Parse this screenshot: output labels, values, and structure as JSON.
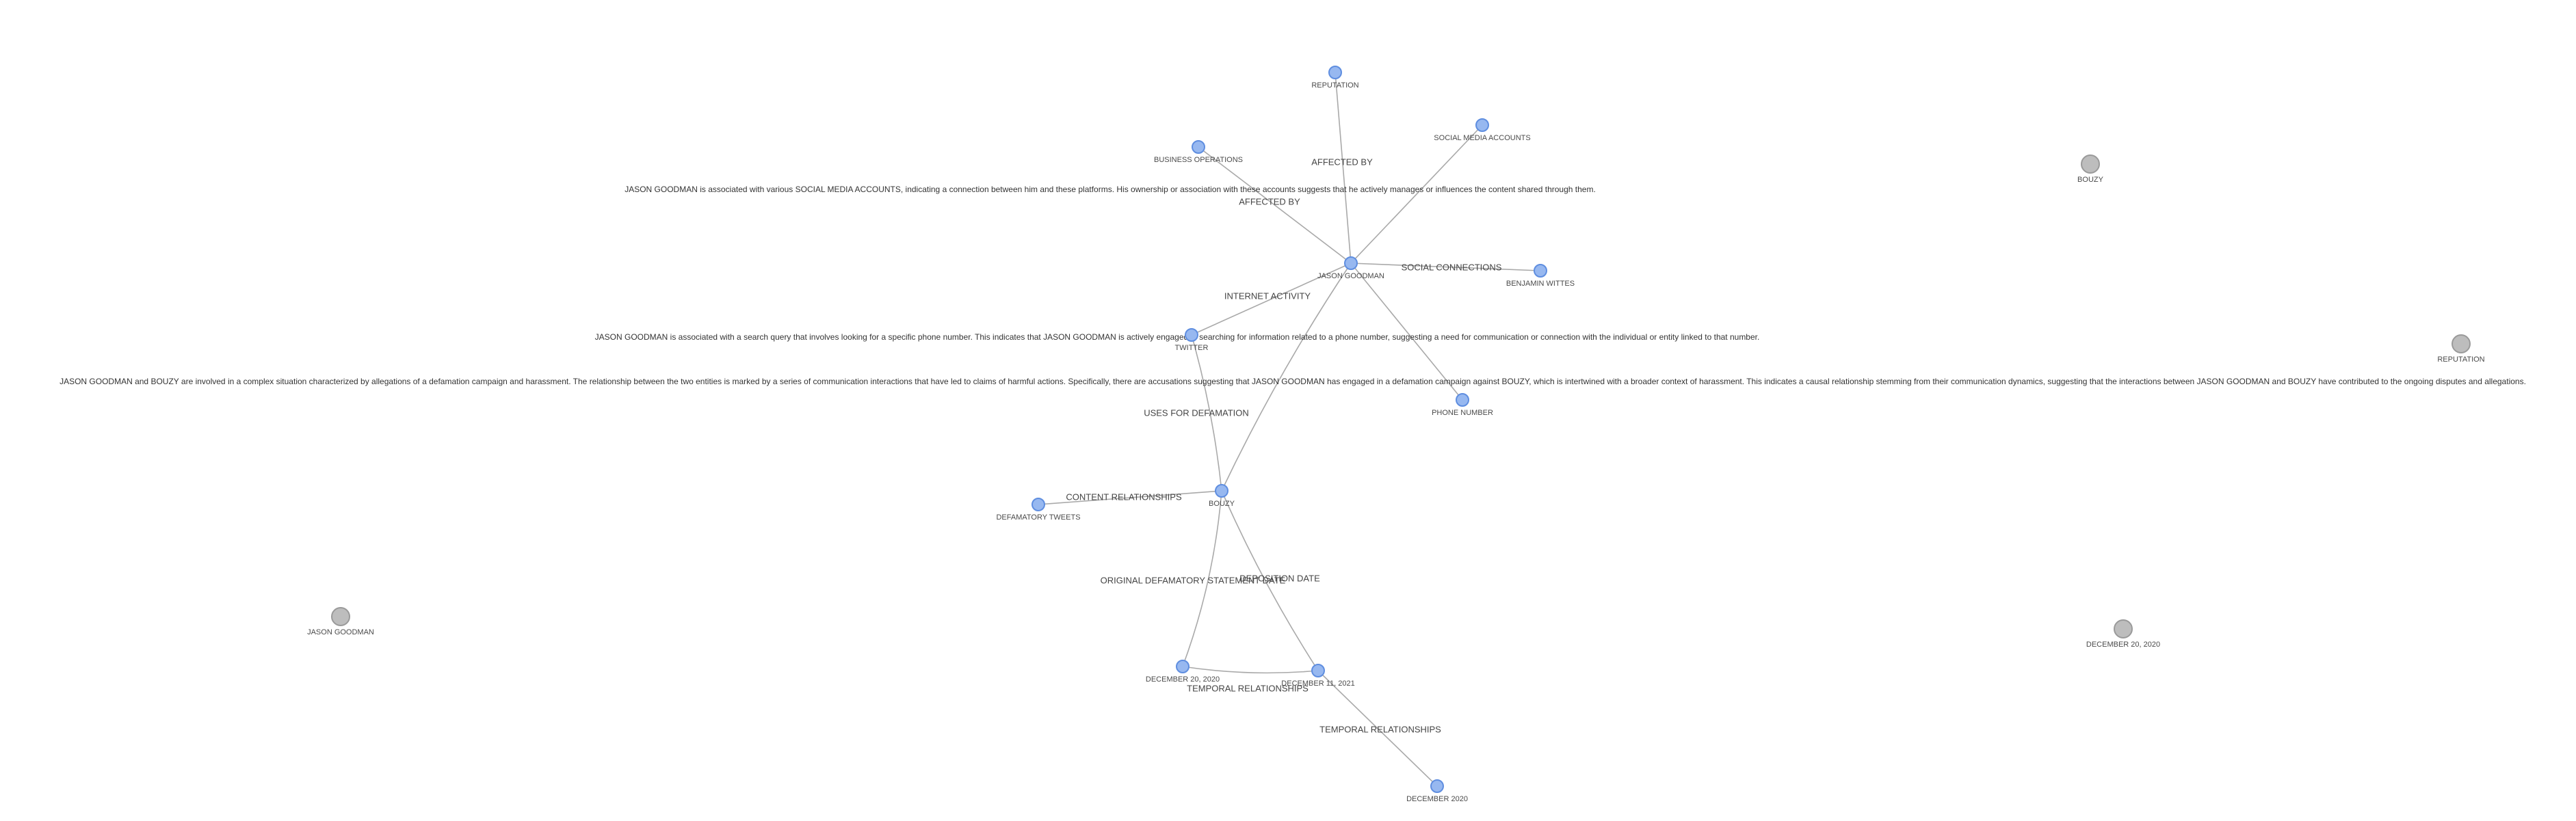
{
  "nodes": [
    {
      "id": "reputation_top",
      "label": "REPUTATION",
      "kind": "connected"
    },
    {
      "id": "social_media",
      "label": "SOCIAL MEDIA ACCOUNTS",
      "kind": "connected"
    },
    {
      "id": "business_ops",
      "label": "BUSINESS OPERATIONS",
      "kind": "connected"
    },
    {
      "id": "jason_center",
      "label": "JASON GOODMAN",
      "kind": "connected"
    },
    {
      "id": "benjamin",
      "label": "BENJAMIN WITTES",
      "kind": "connected"
    },
    {
      "id": "twitter",
      "label": "TWITTER",
      "kind": "connected"
    },
    {
      "id": "phone",
      "label": "PHONE NUMBER",
      "kind": "connected"
    },
    {
      "id": "bouzy_center",
      "label": "BOUZY",
      "kind": "connected"
    },
    {
      "id": "defamatory",
      "label": "DEFAMATORY TWEETS",
      "kind": "connected"
    },
    {
      "id": "dec20_2020",
      "label": "DECEMBER 20, 2020",
      "kind": "connected"
    },
    {
      "id": "dec11_2021",
      "label": "DECEMBER 11, 2021",
      "kind": "connected"
    },
    {
      "id": "dec_2020",
      "label": "DECEMBER 2020",
      "kind": "connected"
    },
    {
      "id": "bouzy_iso",
      "label": "BOUZY",
      "kind": "isolated"
    },
    {
      "id": "reputation_iso",
      "label": "REPUTATION",
      "kind": "isolated"
    },
    {
      "id": "jason_iso",
      "label": "JASON GOODMAN",
      "kind": "isolated"
    },
    {
      "id": "dec20_iso",
      "label": "DECEMBER 20, 2020",
      "kind": "isolated"
    }
  ],
  "edges": [
    {
      "from": "jason_center",
      "to": "reputation_top",
      "label": "AFFECTED BY"
    },
    {
      "from": "jason_center",
      "to": "business_ops",
      "label": "AFFECTED BY"
    },
    {
      "from": "jason_center",
      "to": "social_media",
      "label": ""
    },
    {
      "from": "jason_center",
      "to": "benjamin",
      "label": "SOCIAL CONNECTIONS"
    },
    {
      "from": "jason_center",
      "to": "twitter",
      "label": "INTERNET ACTIVITY"
    },
    {
      "from": "jason_center",
      "to": "phone",
      "label": ""
    },
    {
      "from": "jason_center",
      "to": "bouzy_center",
      "label": ""
    },
    {
      "from": "twitter",
      "to": "bouzy_center",
      "label": "USES FOR DEFAMATION"
    },
    {
      "from": "bouzy_center",
      "to": "defamatory",
      "label": "CONTENT RELATIONSHIPS"
    },
    {
      "from": "bouzy_center",
      "to": "dec20_2020",
      "label": "ORIGINAL DEFAMATORY STATEMENT DATE"
    },
    {
      "from": "bouzy_center",
      "to": "dec11_2021",
      "label": "DEPOSITION DATE"
    },
    {
      "from": "dec20_2020",
      "to": "dec11_2021",
      "label": "TEMPORAL RELATIONSHIPS"
    },
    {
      "from": "dec11_2021",
      "to": "dec_2020",
      "label": "TEMPORAL RELATIONSHIPS"
    }
  ],
  "descriptions": [
    {
      "id": "social_media_desc",
      "text": "JASON GOODMAN is associated with various SOCIAL MEDIA ACCOUNTS, indicating a connection between him and these platforms. His ownership or association with these accounts suggests that he actively manages or influences the content shared through them."
    },
    {
      "id": "phone_desc",
      "text": "JASON GOODMAN is associated with a search query that involves looking for a specific phone number. This indicates that JASON GOODMAN is actively engaged in searching for information related to a phone number, suggesting a need for communication or connection with the individual or entity linked to that number."
    },
    {
      "id": "bouzy_desc",
      "text": "JASON GOODMAN and BOUZY are involved in a complex situation characterized by allegations of a defamation campaign and harassment. The relationship between the two entities is marked by a series of communication interactions that have led to claims of harmful actions. Specifically, there are accusations suggesting that JASON GOODMAN has engaged in a defamation campaign against BOUZY, which is intertwined with a broader context of harassment. This indicates a causal relationship stemming from their communication dynamics, suggesting that the interactions between JASON GOODMAN and BOUZY have contributed to the ongoing disputes and allegations."
    }
  ]
}
